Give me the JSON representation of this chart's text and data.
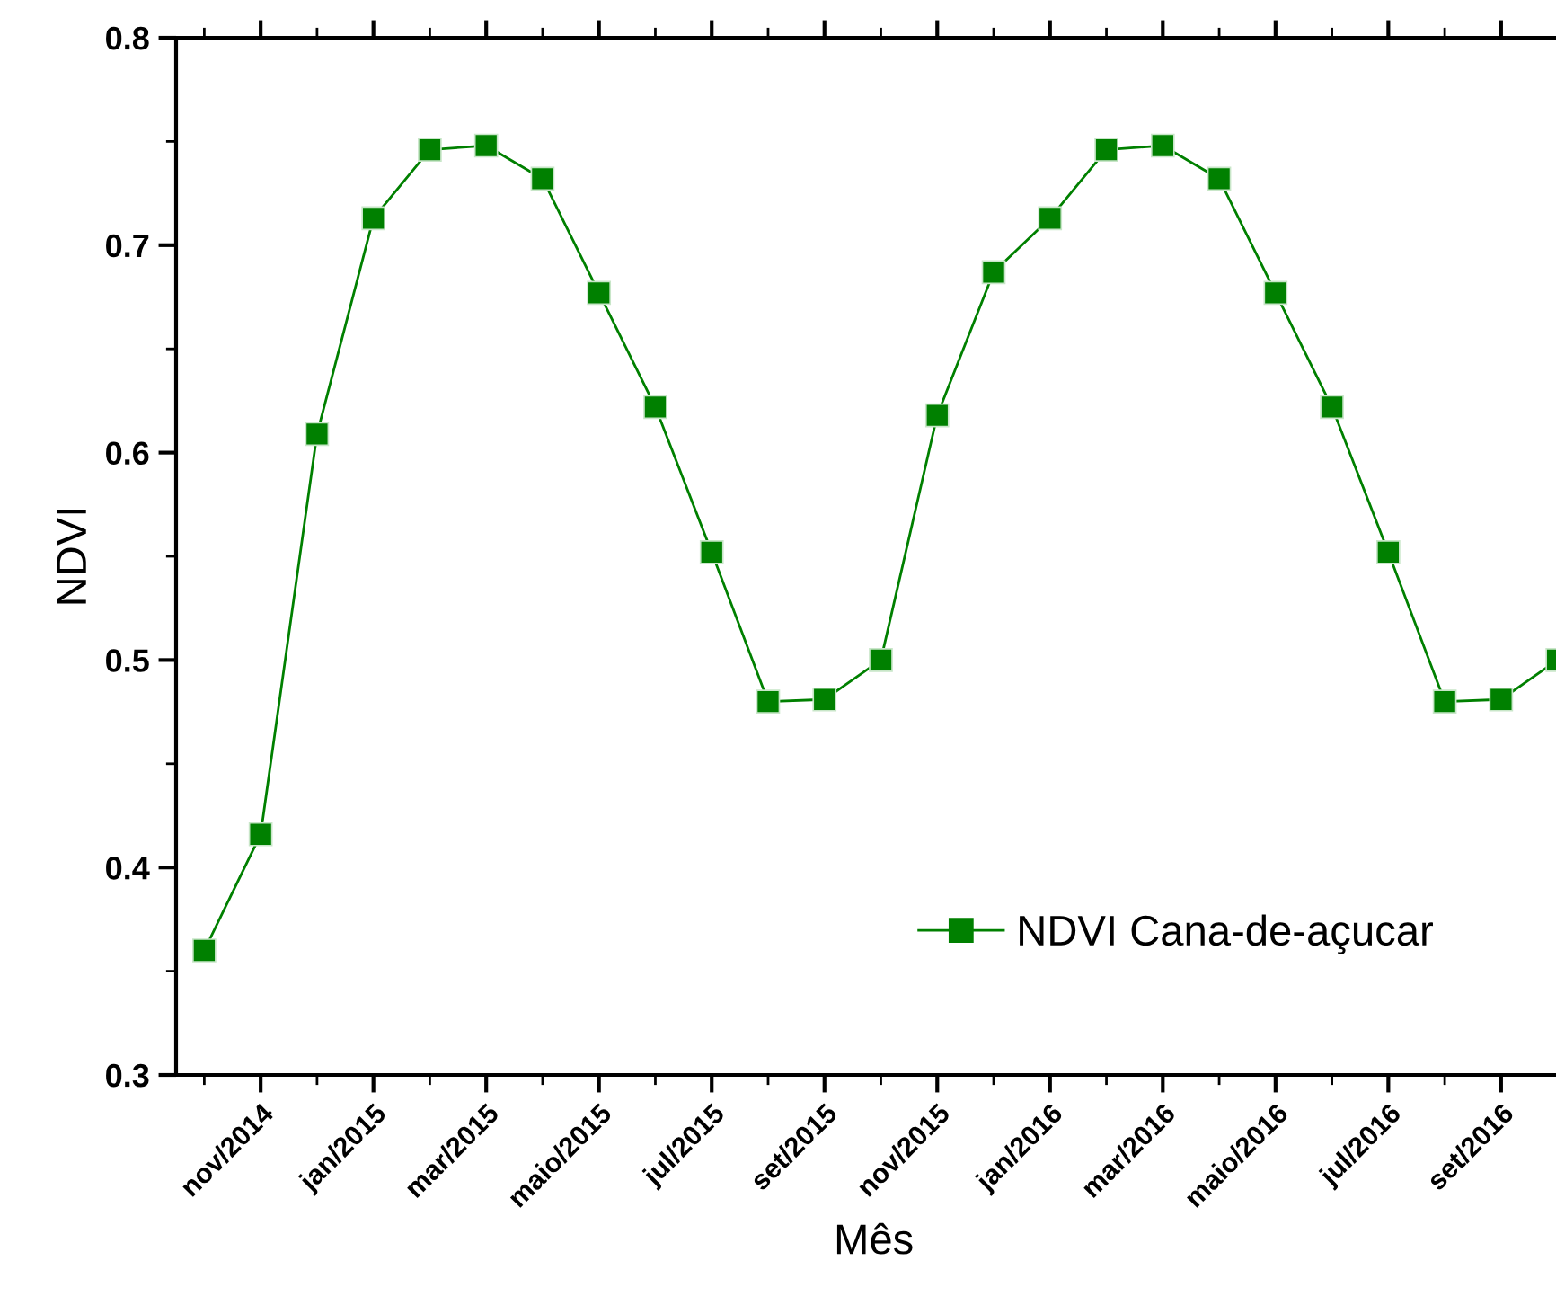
{
  "chart_data": {
    "type": "line",
    "xlabel": "Mês",
    "ylabel": "NDVI",
    "categories": [
      null,
      "nov/2014",
      null,
      "jan/2015",
      null,
      "mar/2015",
      null,
      "maio/2015",
      null,
      "jul/2015",
      null,
      "set/2015",
      null,
      "nov/2015",
      null,
      "jan/2016",
      null,
      "mar/2016",
      null,
      "maio/2016",
      null,
      "jul/2016",
      null,
      "set/2016",
      null
    ],
    "series": [
      {
        "name": "NDVI Cana-de-açucar",
        "color": "#008000",
        "values": [
          0.36,
          0.416,
          0.609,
          0.713,
          0.746,
          0.748,
          0.732,
          0.677,
          0.622,
          0.552,
          0.48,
          0.481,
          0.5,
          0.618,
          0.687,
          0.713,
          0.746,
          0.748,
          0.732,
          0.677,
          0.622,
          0.552,
          0.48,
          0.481,
          0.5
        ]
      }
    ],
    "ylim": [
      0.3,
      0.8
    ],
    "yticks": [
      0.3,
      0.4,
      0.5,
      0.6,
      0.7,
      0.8
    ],
    "marker": "square",
    "line_style": "solid",
    "legend": "bottom right",
    "grid": false
  }
}
